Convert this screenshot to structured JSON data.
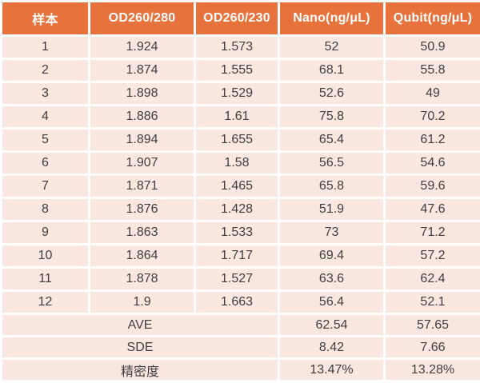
{
  "colors": {
    "header_bg": "#E8723C",
    "row_bg": "#FAE8E0",
    "grid": "#FFFFFF",
    "header_text": "#FFFFFF",
    "body_text": "#3E3E3E"
  },
  "chart_data": {
    "type": "table",
    "title": "",
    "columns": [
      "样本",
      "OD260/280",
      "OD260/230",
      "Nano(ng/μL)",
      "Qubit(ng/μL)"
    ],
    "rows": [
      [
        "1",
        "1.924",
        "1.573",
        "52",
        "50.9"
      ],
      [
        "2",
        "1.874",
        "1.555",
        "68.1",
        "55.8"
      ],
      [
        "3",
        "1.898",
        "1.529",
        "52.6",
        "49"
      ],
      [
        "4",
        "1.886",
        "1.61",
        "75.8",
        "70.2"
      ],
      [
        "5",
        "1.894",
        "1.655",
        "65.4",
        "61.2"
      ],
      [
        "6",
        "1.907",
        "1.58",
        "56.5",
        "54.6"
      ],
      [
        "7",
        "1.871",
        "1.465",
        "65.8",
        "59.6"
      ],
      [
        "8",
        "1.876",
        "1.428",
        "51.9",
        "47.6"
      ],
      [
        "9",
        "1.863",
        "1.533",
        "73",
        "71.2"
      ],
      [
        "10",
        "1.864",
        "1.717",
        "69.4",
        "57.2"
      ],
      [
        "11",
        "1.878",
        "1.527",
        "63.6",
        "62.4"
      ],
      [
        "12",
        "1.9",
        "1.663",
        "56.4",
        "52.1"
      ]
    ],
    "summary_rows": [
      [
        "AVE",
        "62.54",
        "57.65"
      ],
      [
        "SDE",
        "8.42",
        "7.66"
      ],
      [
        "精密度",
        "13.47%",
        "13.28%"
      ]
    ]
  }
}
